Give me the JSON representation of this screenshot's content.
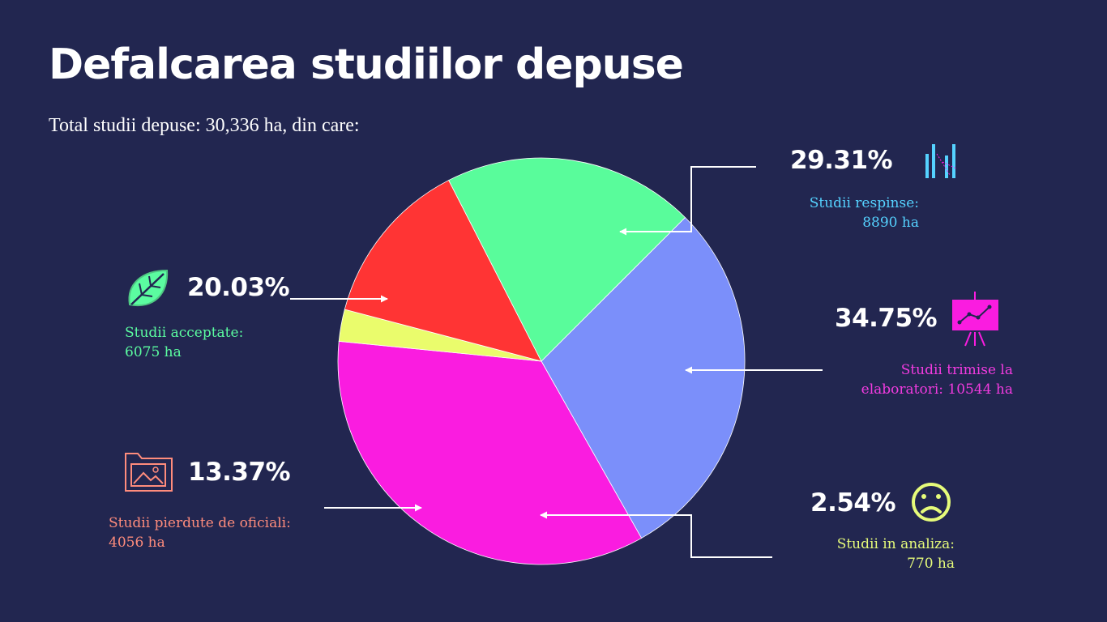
{
  "title": "Defalcarea studiilor depuse",
  "subtitle": "Total studii depuse: 30,336 ha, din care:",
  "chart_data": {
    "type": "pie",
    "slices": [
      {
        "key": "respinse",
        "value": 8890,
        "percent": "29.31%",
        "label_line1": "Studii respinse:",
        "label_line2": "8890 ha",
        "color": "#7b8ffa",
        "icon": "bar-chart-icon"
      },
      {
        "key": "trimise",
        "value": 10544,
        "percent": "34.75%",
        "label_line1": "Studii trimise la",
        "label_line2": "elaboratori: 10544 ha",
        "color": "#fa1ce0",
        "icon": "presentation-board-icon"
      },
      {
        "key": "analiza",
        "value": 770,
        "percent": "2.54%",
        "label_line1": "Studii in analiza:",
        "label_line2": "770 ha",
        "color": "#eafc6c",
        "icon": "sad-face-icon"
      },
      {
        "key": "pierdute",
        "value": 4056,
        "percent": "13.37%",
        "label_line1": "Studii pierdute de oficiali:",
        "label_line2": "4056 ha",
        "color": "#ff3434",
        "icon": "folder-image-icon"
      },
      {
        "key": "acceptate",
        "value": 6075,
        "percent": "20.03%",
        "label_line1": "Studii acceptate:",
        "label_line2": "6075 ha",
        "color": "#59fc9b",
        "icon": "leaf-icon"
      }
    ],
    "label_colors": {
      "respinse": "#55d2ff",
      "trimise": "#f23be0",
      "analiza": "#e6fb7a",
      "pierdute": "#ff8c7c",
      "acceptate": "#5bfca0"
    }
  }
}
